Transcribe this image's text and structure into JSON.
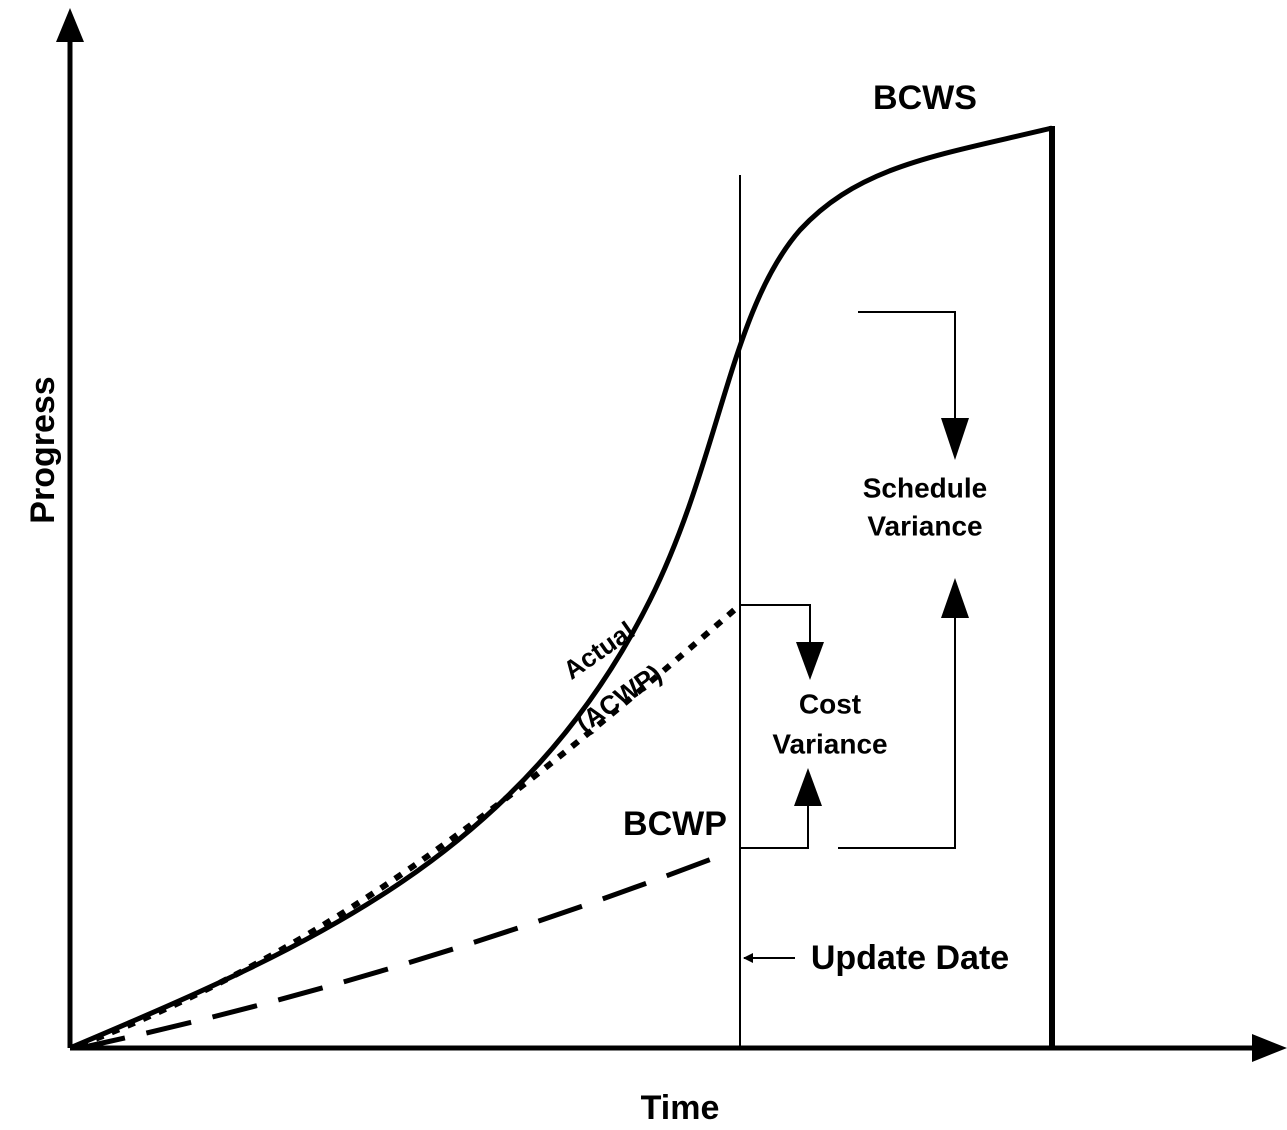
{
  "axes": {
    "y_label": "Progress",
    "x_label": "Time"
  },
  "curves": {
    "bcws": "BCWS",
    "acwp": [
      "Actual",
      "(ACWP)"
    ],
    "bcwp": "BCWP"
  },
  "annotations": {
    "schedule_variance": [
      "Schedule",
      "Variance"
    ],
    "cost_variance": [
      "Cost",
      "Variance"
    ],
    "update_date": "Update Date"
  }
}
